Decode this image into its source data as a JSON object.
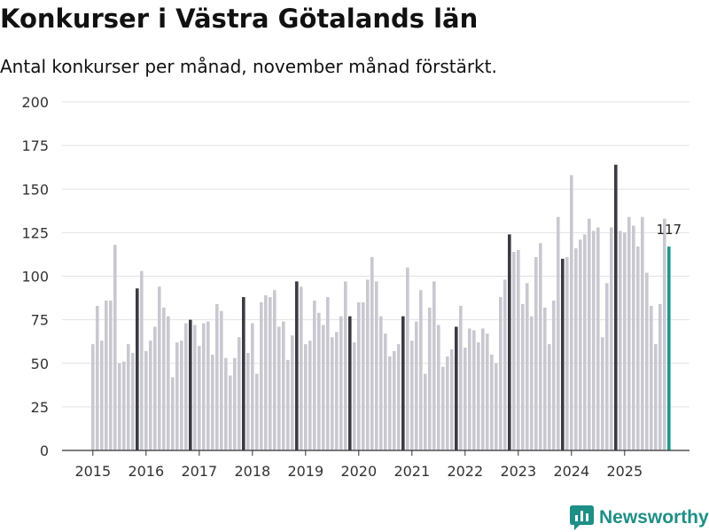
{
  "page": {
    "title": "Konkurser i Västra Götalands län",
    "subtitle": "Antal konkurser per månad, november månad förstärkt."
  },
  "brand": {
    "name": "Newsworthy",
    "logo_icon": "newsworthy-logo-icon",
    "color": "#1d8f86"
  },
  "colors": {
    "bar": "#c9c8d0",
    "highlight": "#3b3b44",
    "latest": "#1a9a8e",
    "grid": "#e2e2e2",
    "axis": "#333333"
  },
  "chart_data": {
    "type": "bar",
    "title": "Konkurser i Västra Götalands län",
    "subtitle": "Antal konkurser per månad, november månad förstärkt.",
    "xlabel": "",
    "ylabel": "",
    "ylim": [
      0,
      200
    ],
    "yticks": [
      0,
      25,
      50,
      75,
      100,
      125,
      150,
      175,
      200
    ],
    "year_labels": [
      "2015",
      "2016",
      "2017",
      "2018",
      "2019",
      "2020",
      "2021",
      "2022",
      "2023",
      "2024",
      "2025"
    ],
    "grid": true,
    "highlight_month": "november",
    "value_label": "117",
    "series": [
      {
        "name": "2015",
        "values": [
          61,
          83,
          63,
          86,
          86,
          118,
          50,
          51,
          61,
          56,
          93,
          103
        ]
      },
      {
        "name": "2016",
        "values": [
          57,
          63,
          71,
          94,
          82,
          77,
          42,
          62,
          63,
          73,
          75,
          72
        ]
      },
      {
        "name": "2017",
        "values": [
          60,
          73,
          74,
          55,
          84,
          80,
          53,
          43,
          53,
          65,
          88,
          56
        ]
      },
      {
        "name": "2018",
        "values": [
          73,
          44,
          85,
          89,
          88,
          92,
          71,
          74,
          52,
          66,
          97,
          94
        ]
      },
      {
        "name": "2019",
        "values": [
          61,
          63,
          86,
          79,
          72,
          88,
          65,
          68,
          77,
          97,
          77,
          62
        ]
      },
      {
        "name": "2020",
        "values": [
          85,
          85,
          98,
          111,
          97,
          77,
          67,
          54,
          57,
          61,
          77,
          105
        ]
      },
      {
        "name": "2021",
        "values": [
          63,
          74,
          92,
          44,
          82,
          97,
          72,
          48,
          54,
          58,
          71,
          83
        ]
      },
      {
        "name": "2022",
        "values": [
          59,
          70,
          69,
          62,
          70,
          67,
          55,
          50,
          88,
          98,
          124,
          114
        ]
      },
      {
        "name": "2023",
        "values": [
          115,
          84,
          96,
          77,
          111,
          119,
          82,
          61,
          86,
          134,
          110,
          111
        ]
      },
      {
        "name": "2024",
        "values": [
          158,
          116,
          121,
          124,
          133,
          126,
          128,
          65,
          96,
          128,
          164,
          126
        ]
      },
      {
        "name": "2025",
        "values": [
          125,
          134,
          129,
          117,
          134,
          102,
          83,
          61,
          84,
          133,
          117
        ]
      }
    ]
  }
}
